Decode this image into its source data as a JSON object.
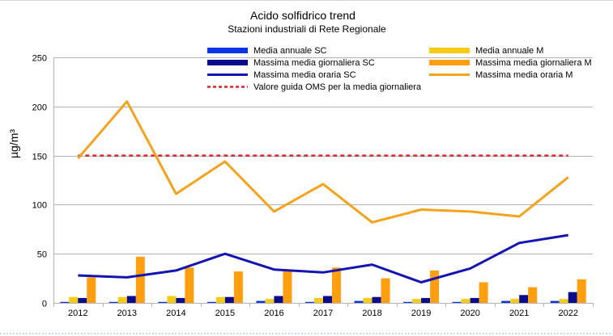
{
  "chart_data": {
    "type": "bar",
    "title": "Acido solfidrico trend",
    "subtitle": "Stazioni industriali di Rete Regionale",
    "ylabel": "µg/m³",
    "xlabel": "",
    "ylim": [
      0,
      250
    ],
    "yticks": [
      0,
      50,
      100,
      150,
      200,
      250
    ],
    "grid": true,
    "legend_position": "top",
    "categories": [
      "2012",
      "2013",
      "2014",
      "2015",
      "2016",
      "2017",
      "2018",
      "2019",
      "2020",
      "2021",
      "2022"
    ],
    "bar_series": [
      {
        "name": "Media annuale  SC",
        "color": "#0a35e6",
        "values": [
          1,
          1,
          1,
          1,
          2,
          1,
          2,
          1,
          1,
          2,
          2
        ]
      },
      {
        "name": "Media annuale M",
        "color": "#f5cc13",
        "values": [
          6,
          6,
          7,
          6,
          4,
          5,
          5,
          4,
          4,
          4,
          4
        ]
      },
      {
        "name": "Massima media giornaliera SC",
        "color": "#0a0a8c",
        "values": [
          5,
          7,
          5,
          6,
          7,
          7,
          6,
          5,
          5,
          8,
          11
        ]
      },
      {
        "name": "Massima media giornaliera M",
        "color": "#ff9e0f",
        "values": [
          26,
          47,
          36,
          32,
          34,
          36,
          25,
          33,
          21,
          16,
          24
        ]
      }
    ],
    "line_series": [
      {
        "name": "Massima media oraria SC",
        "color": "#1414b4",
        "values": [
          28,
          26,
          33,
          50,
          34,
          31,
          39,
          21,
          35,
          61,
          69
        ]
      },
      {
        "name": "Massima media oraria M",
        "color": "#f5a21e",
        "values": [
          147,
          205,
          111,
          144,
          93,
          121,
          82,
          95,
          93,
          88,
          128
        ]
      }
    ],
    "reference_lines": [
      {
        "name": "Valore guida OMS per la media giornaliera",
        "color": "#e0202b",
        "value": 150,
        "style": "dashed"
      }
    ]
  }
}
